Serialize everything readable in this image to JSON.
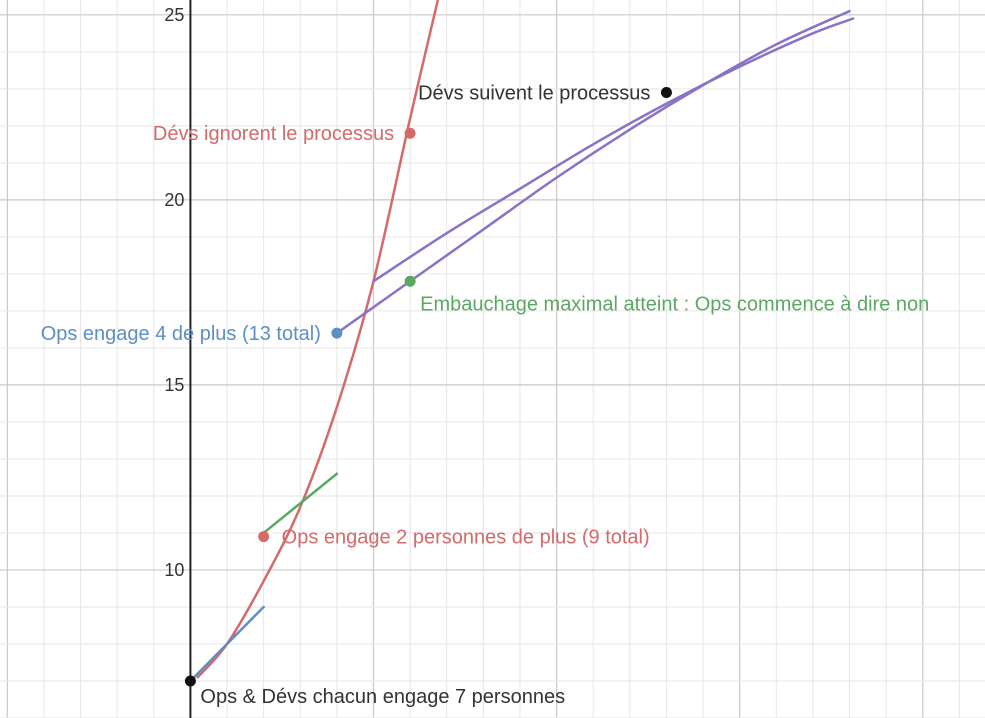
{
  "chart_data": {
    "type": "line",
    "title": "",
    "xlabel": "",
    "ylabel": "",
    "xlim": [
      -5.2,
      21.7
    ],
    "ylim": [
      6.0,
      25.4
    ],
    "grid": true,
    "y_tick_labels": [
      "10",
      "15",
      "20",
      "25"
    ],
    "colors": {
      "red": "#d46a6a",
      "blue": "#5b8fc6",
      "green": "#5aa862",
      "purple": "#8a72c4",
      "black": "#111111",
      "major_grid": "#c9c9c9",
      "minor_grid": "#e6e6e6",
      "axis": "#222222"
    },
    "curves": [
      {
        "color": "red",
        "points": [
          [
            0.2,
            7.1
          ],
          [
            1,
            8
          ],
          [
            2,
            9.7
          ],
          [
            3,
            11.7
          ],
          [
            4,
            14.4
          ],
          [
            5,
            17.8
          ],
          [
            6,
            22.2
          ],
          [
            6.9,
            26
          ]
        ]
      },
      {
        "color": "blue",
        "points": [
          [
            0,
            7
          ],
          [
            2,
            9
          ]
        ]
      },
      {
        "color": "green",
        "points": [
          [
            2,
            11
          ],
          [
            4,
            12.6
          ]
        ]
      },
      {
        "color": "purple",
        "points": [
          [
            4,
            16.4
          ],
          [
            6,
            17.8
          ],
          [
            8,
            19.2
          ],
          [
            10,
            20.6
          ],
          [
            12,
            21.9
          ],
          [
            14,
            23.1
          ],
          [
            16,
            24.2
          ],
          [
            18,
            25.1
          ]
        ]
      },
      {
        "color": "purple",
        "points": [
          [
            5,
            17.8
          ],
          [
            7,
            19.1
          ],
          [
            9,
            20.3
          ],
          [
            11,
            21.5
          ],
          [
            13,
            22.6
          ],
          [
            15,
            23.6
          ],
          [
            17,
            24.5
          ],
          [
            18.1,
            24.9
          ]
        ]
      }
    ],
    "annotated_points": [
      {
        "x": 0,
        "y": 7,
        "color": "black",
        "label": "Ops & Dévs chacun engage 7 personnes",
        "label_color": "#333333",
        "anchor": "start",
        "dx": 10,
        "dy": 22
      },
      {
        "x": 2,
        "y": 10.9,
        "color": "red",
        "label": "Ops engage 2 personnes de plus (9 total)",
        "label_color": "#d46a6a",
        "anchor": "start",
        "dx": 18,
        "dy": 7
      },
      {
        "x": 4,
        "y": 16.4,
        "color": "blue",
        "label": "Ops engage 4 de plus (13 total)",
        "label_color": "#5b8fc6",
        "anchor": "end",
        "dx": -16,
        "dy": 7
      },
      {
        "x": 6,
        "y": 17.8,
        "color": "green",
        "label": "Embauchage maximal atteint : Ops commence à dire non",
        "label_color": "#5aa862",
        "anchor": "start",
        "dx": 10,
        "dy": 29
      },
      {
        "x": 6,
        "y": 21.8,
        "color": "red",
        "label": "Dévs ignorent le processus",
        "label_color": "#d46a6a",
        "anchor": "end",
        "dx": -16,
        "dy": 7
      },
      {
        "x": 13,
        "y": 22.9,
        "color": "black",
        "label": "Dévs suivent le processus",
        "label_color": "#333333",
        "anchor": "end",
        "dx": -16,
        "dy": 7
      }
    ]
  }
}
